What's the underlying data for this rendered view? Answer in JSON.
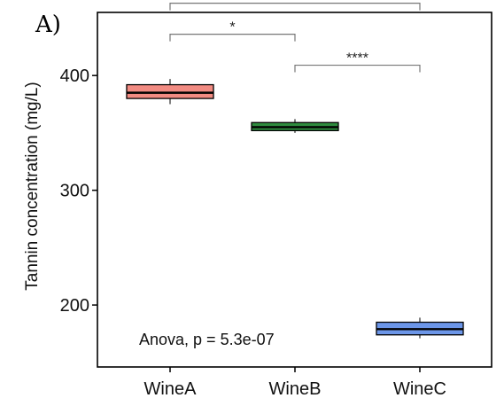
{
  "panel_label": "A)",
  "chart_data": {
    "type": "box",
    "ylabel": "Tannin concentration (mg/L)",
    "xlabel": "",
    "ylim": [
      146,
      455
    ],
    "yticks": [
      200,
      300,
      400
    ],
    "grid": false,
    "categories": [
      "WineA",
      "WineB",
      "WineC"
    ],
    "boxes": [
      {
        "category": "WineA",
        "min": 375,
        "q1": 380,
        "median": 385,
        "q3": 392,
        "max": 397,
        "color": "#f28b82"
      },
      {
        "category": "WineB",
        "min": 350,
        "q1": 352,
        "median": 355,
        "q3": 359,
        "max": 362,
        "color": "#2e8b3e"
      },
      {
        "category": "WineC",
        "min": 171,
        "q1": 174,
        "median": 179,
        "q3": 185,
        "max": 189,
        "color": "#6c96e8"
      }
    ],
    "comparisons": [
      {
        "from": "WineA",
        "to": "WineB",
        "label": "*",
        "y": 436
      },
      {
        "from": "WineB",
        "to": "WineC",
        "label": "****",
        "y": 409
      },
      {
        "from": "WineA",
        "to": "WineC",
        "label": "****",
        "y": 463
      }
    ],
    "annotation": "Anova, p = 5.3e-07"
  }
}
